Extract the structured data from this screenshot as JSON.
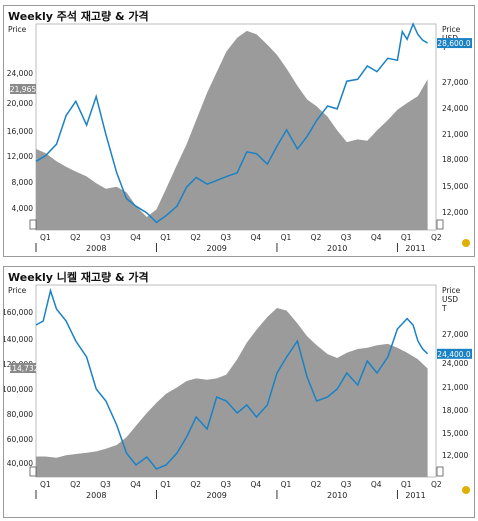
{
  "chart_data": [
    {
      "type": "area",
      "title": "Weekly 주석 재고량 & 가격",
      "left_axis": {
        "unit": "Price",
        "ticks": [
          "24,000",
          "20,000",
          "16,000",
          "12,000",
          "8,000",
          "4,000"
        ],
        "ylim": [
          0,
          30000
        ],
        "current": "21,965"
      },
      "right_axis": {
        "units": [
          "Price",
          "USD",
          "T"
        ],
        "ticks": [
          "27,000",
          "24,000",
          "21,000",
          "18,000",
          "15,000",
          "12,000"
        ],
        "ylim": [
          9000,
          30600
        ],
        "current": "28,600.0"
      },
      "x_quarters": [
        "Q1",
        "Q2",
        "Q3",
        "Q4",
        "Q1",
        "Q2",
        "Q3",
        "Q4",
        "Q1",
        "Q2",
        "Q3",
        "Q4",
        "Q1",
        "Q2"
      ],
      "years": [
        "2008",
        "2009",
        "2010",
        "2011"
      ],
      "series": [
        {
          "axis": "left",
          "x": [
            2008.0,
            2008.08,
            2008.17,
            2008.25,
            2008.33,
            2008.42,
            2008.5,
            2008.58,
            2008.67,
            2008.75,
            2008.83,
            2008.92,
            2009.0,
            2009.08,
            2009.17,
            2009.25,
            2009.33,
            2009.42,
            2009.5,
            2009.58,
            2009.67,
            2009.75,
            2009.83,
            2009.92,
            2010.0,
            2010.08,
            2010.17,
            2010.25,
            2010.33,
            2010.42,
            2010.5,
            2010.58,
            2010.67,
            2010.75,
            2010.83,
            2010.92,
            2011.0,
            2011.08,
            2011.17,
            2011.25
          ],
          "values": [
            11800,
            11200,
            10000,
            9200,
            8500,
            7800,
            6800,
            6000,
            6300,
            5500,
            3500,
            1900,
            3000,
            6000,
            9500,
            12500,
            16000,
            20000,
            23000,
            26000,
            28000,
            29000,
            28500,
            27000,
            25500,
            23500,
            21000,
            19000,
            18000,
            16500,
            14500,
            12800,
            13200,
            13000,
            14500,
            16000,
            17500,
            18500,
            19500,
            21965
          ]
        },
        {
          "axis": "right",
          "x": [
            2008.0,
            2008.08,
            2008.17,
            2008.25,
            2008.33,
            2008.42,
            2008.5,
            2008.58,
            2008.67,
            2008.75,
            2008.83,
            2008.92,
            2009.0,
            2009.08,
            2009.17,
            2009.25,
            2009.33,
            2009.42,
            2009.5,
            2009.58,
            2009.67,
            2009.75,
            2009.83,
            2009.92,
            2010.0,
            2010.08,
            2010.17,
            2010.25,
            2010.33,
            2010.42,
            2010.5,
            2010.58,
            2010.67,
            2010.75,
            2010.83,
            2010.92,
            2011.0,
            2011.04,
            2011.08,
            2011.13,
            2011.17,
            2011.21,
            2011.25
          ],
          "values": [
            16200,
            16800,
            18000,
            21000,
            22500,
            20000,
            23000,
            19000,
            15000,
            12300,
            11500,
            10800,
            9800,
            10500,
            11500,
            13500,
            14500,
            13800,
            14200,
            14600,
            15000,
            17200,
            17000,
            15900,
            17800,
            19500,
            17500,
            18800,
            20500,
            22000,
            21700,
            24600,
            24800,
            26200,
            25600,
            27000,
            26800,
            29800,
            29000,
            30600,
            29500,
            28900,
            28600
          ]
        }
      ]
    },
    {
      "type": "area",
      "title": "Weekly 니켈 재고량 & 가격",
      "left_axis": {
        "unit": "Price",
        "ticks": [
          "160,000",
          "140,000",
          "120,000",
          "100,000",
          "80,000",
          "60,000",
          "40,000"
        ],
        "ylim": [
          30000,
          180000
        ],
        "current": "114,732"
      },
      "right_axis": {
        "units": [
          "Price",
          "USD",
          "T"
        ],
        "ticks": [
          "27,000",
          "24,000",
          "21,000",
          "18,000",
          "15,000",
          "12,000"
        ],
        "ylim": [
          9000,
          33000
        ],
        "current": "24,400.0"
      },
      "x_quarters": [
        "Q1",
        "Q2",
        "Q3",
        "Q4",
        "Q1",
        "Q2",
        "Q3",
        "Q4",
        "Q1",
        "Q2",
        "Q3",
        "Q4",
        "Q1",
        "Q2"
      ],
      "years": [
        "2008",
        "2009",
        "2010",
        "2011"
      ],
      "series": [
        {
          "axis": "left",
          "x": [
            2008.0,
            2008.08,
            2008.17,
            2008.25,
            2008.33,
            2008.42,
            2008.5,
            2008.58,
            2008.67,
            2008.75,
            2008.83,
            2008.92,
            2009.0,
            2009.08,
            2009.17,
            2009.25,
            2009.33,
            2009.42,
            2009.5,
            2009.58,
            2009.67,
            2009.75,
            2009.83,
            2009.92,
            2010.0,
            2010.08,
            2010.17,
            2010.25,
            2010.33,
            2010.42,
            2010.5,
            2010.58,
            2010.67,
            2010.75,
            2010.83,
            2010.92,
            2011.0,
            2011.08,
            2011.17,
            2011.25
          ],
          "values": [
            46000,
            46000,
            45000,
            47000,
            48000,
            49000,
            50000,
            52000,
            55000,
            61000,
            70000,
            80000,
            88000,
            95000,
            100000,
            105000,
            107000,
            106000,
            107000,
            110000,
            122000,
            135000,
            145000,
            155000,
            162000,
            160000,
            150000,
            140000,
            133000,
            126000,
            123000,
            127000,
            130000,
            131000,
            133000,
            134000,
            131000,
            127000,
            122000,
            114732
          ]
        },
        {
          "axis": "right",
          "x": [
            2008.0,
            2008.06,
            2008.12,
            2008.17,
            2008.25,
            2008.33,
            2008.42,
            2008.5,
            2008.58,
            2008.67,
            2008.75,
            2008.83,
            2008.92,
            2009.0,
            2009.08,
            2009.17,
            2009.25,
            2009.33,
            2009.42,
            2009.5,
            2009.58,
            2009.67,
            2009.75,
            2009.83,
            2009.92,
            2010.0,
            2010.08,
            2010.17,
            2010.25,
            2010.33,
            2010.42,
            2010.5,
            2010.58,
            2010.67,
            2010.75,
            2010.83,
            2010.92,
            2011.0,
            2011.08,
            2011.13,
            2011.17,
            2011.21,
            2011.25
          ],
          "values": [
            28000,
            28500,
            32300,
            30000,
            28500,
            26000,
            24000,
            20000,
            18500,
            15500,
            12000,
            10500,
            11500,
            10000,
            10500,
            12000,
            14000,
            16500,
            15000,
            19000,
            18500,
            17000,
            18000,
            16500,
            18000,
            22000,
            24000,
            26000,
            21500,
            18500,
            19000,
            20000,
            22000,
            20500,
            23500,
            22000,
            24000,
            27500,
            28800,
            28000,
            26000,
            25000,
            24400
          ]
        }
      ]
    }
  ]
}
